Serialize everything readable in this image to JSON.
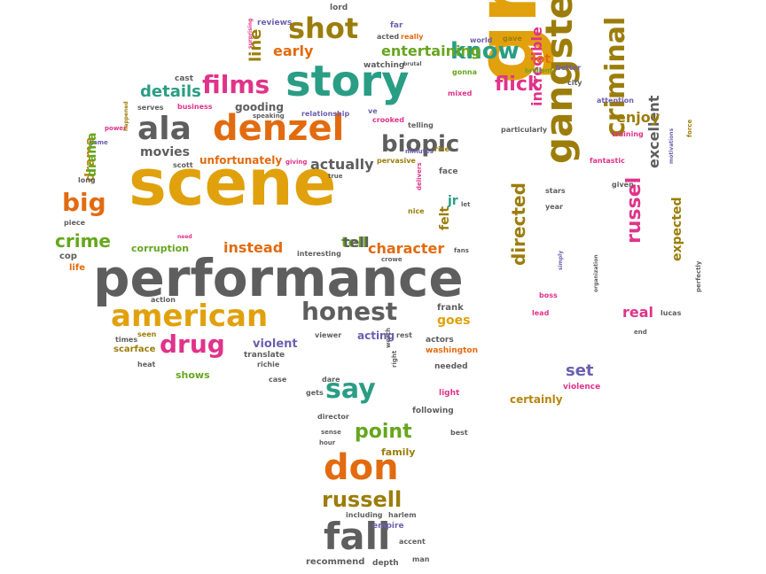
{
  "palette": {
    "gold": "#e0a10c",
    "gray": "#5e5e5e",
    "orange": "#e26b10",
    "teal": "#2a9d85",
    "pink": "#e0338a",
    "olive": "#b8860b",
    "green": "#66a61e",
    "purple": "#6b5fb0",
    "mustard": "#9c7d0a"
  },
  "words": [
    {
      "text": "scene",
      "color": "gold"
    },
    {
      "text": "great",
      "color": "gold"
    },
    {
      "text": "performance",
      "color": "gray"
    },
    {
      "text": "story",
      "color": "teal"
    },
    {
      "text": "denzel",
      "color": "orange"
    },
    {
      "text": "gangster",
      "color": "mustard"
    },
    {
      "text": "american",
      "color": "gold"
    },
    {
      "text": "don",
      "color": "orange"
    },
    {
      "text": "fall",
      "color": "gray"
    },
    {
      "text": "shot",
      "color": "mustard"
    },
    {
      "text": "criminal",
      "color": "mustard"
    },
    {
      "text": "honest",
      "color": "gray"
    },
    {
      "text": "ala",
      "color": "gray"
    },
    {
      "text": "films",
      "color": "pink"
    },
    {
      "text": "biopic",
      "color": "gray"
    },
    {
      "text": "big",
      "color": "orange"
    },
    {
      "text": "drug",
      "color": "pink"
    },
    {
      "text": "say",
      "color": "teal"
    },
    {
      "text": "know",
      "color": "teal"
    },
    {
      "text": "russell",
      "color": "mustard"
    },
    {
      "text": "flick",
      "color": "pink"
    },
    {
      "text": "russel",
      "color": "pink"
    },
    {
      "text": "directed",
      "color": "mustard"
    },
    {
      "text": "point",
      "color": "green"
    },
    {
      "text": "crime",
      "color": "green"
    },
    {
      "text": "incredible",
      "color": "pink"
    },
    {
      "text": "excellent",
      "color": "gray"
    },
    {
      "text": "details",
      "color": "teal"
    },
    {
      "text": "entertaining",
      "color": "green"
    },
    {
      "text": "line",
      "color": "mustard"
    },
    {
      "text": "early",
      "color": "orange"
    },
    {
      "text": "actually",
      "color": "gray"
    },
    {
      "text": "character",
      "color": "orange"
    },
    {
      "text": "instead",
      "color": "orange"
    },
    {
      "text": "tell",
      "color": "green"
    },
    {
      "text": "movies",
      "color": "gray"
    },
    {
      "text": "drama",
      "color": "olive"
    },
    {
      "text": "enjoy",
      "color": "mustard"
    },
    {
      "text": "real",
      "color": "pink"
    },
    {
      "text": "set",
      "color": "purple"
    },
    {
      "text": "expected",
      "color": "mustard"
    },
    {
      "text": "goes",
      "color": "gold"
    },
    {
      "text": "acting",
      "color": "purple"
    },
    {
      "text": "felt",
      "color": "mustard"
    },
    {
      "text": "jr",
      "color": "teal"
    },
    {
      "text": "lot",
      "color": "orange"
    },
    {
      "text": "unfortunately",
      "color": "orange"
    },
    {
      "text": "gooding",
      "color": "gray"
    },
    {
      "text": "violent",
      "color": "purple"
    },
    {
      "text": "corruption",
      "color": "green"
    },
    {
      "text": "shows",
      "color": "green"
    },
    {
      "text": "certainly",
      "color": "olive"
    },
    {
      "text": "frank",
      "color": "gray"
    },
    {
      "text": "family",
      "color": "mustard"
    },
    {
      "text": "reviews",
      "color": "purple"
    },
    {
      "text": "lord",
      "color": "gray"
    },
    {
      "text": "far",
      "color": "purple"
    },
    {
      "text": "acted",
      "color": "gray"
    },
    {
      "text": "really",
      "color": "orange"
    },
    {
      "text": "world",
      "color": "purple"
    },
    {
      "text": "gave",
      "color": "mustard"
    },
    {
      "text": "watching",
      "color": "gray"
    },
    {
      "text": "gonna",
      "color": "green"
    },
    {
      "text": "brilliant",
      "color": "green"
    },
    {
      "text": "better",
      "color": "purple"
    },
    {
      "text": "city",
      "color": "gray"
    },
    {
      "text": "cast",
      "color": "gray"
    },
    {
      "text": "business",
      "color": "pink"
    },
    {
      "text": "serves",
      "color": "gray"
    },
    {
      "text": "speaking",
      "color": "gray"
    },
    {
      "text": "relationship",
      "color": "purple"
    },
    {
      "text": "ve",
      "color": "purple"
    },
    {
      "text": "crooked",
      "color": "pink"
    },
    {
      "text": "telling",
      "color": "gray"
    },
    {
      "text": "mixed",
      "color": "pink"
    },
    {
      "text": "attention",
      "color": "purple"
    },
    {
      "text": "particularly",
      "color": "gray"
    },
    {
      "text": "training",
      "color": "pink"
    },
    {
      "text": "power",
      "color": "pink"
    },
    {
      "text": "happened",
      "color": "mustard"
    },
    {
      "text": "game",
      "color": "purple"
    },
    {
      "text": "scott",
      "color": "gray"
    },
    {
      "text": "giving",
      "color": "pink"
    },
    {
      "text": "pervasive",
      "color": "mustard"
    },
    {
      "text": "minutes",
      "color": "purple"
    },
    {
      "text": "rise",
      "color": "mustard"
    },
    {
      "text": "face",
      "color": "gray"
    },
    {
      "text": "true",
      "color": "gray"
    },
    {
      "text": "nice",
      "color": "mustard"
    },
    {
      "text": "delivers",
      "color": "pink"
    },
    {
      "text": "let",
      "color": "gray"
    },
    {
      "text": "fantastic",
      "color": "pink"
    },
    {
      "text": "given",
      "color": "gray"
    },
    {
      "text": "force",
      "color": "mustard"
    },
    {
      "text": "motivations",
      "color": "purple"
    },
    {
      "text": "long",
      "color": "gray"
    },
    {
      "text": "piece",
      "color": "gray"
    },
    {
      "text": "need",
      "color": "pink"
    },
    {
      "text": "year",
      "color": "gray"
    },
    {
      "text": "stars",
      "color": "gray"
    },
    {
      "text": "interesting",
      "color": "gray"
    },
    {
      "text": "crowe",
      "color": "gray"
    },
    {
      "text": "fans",
      "color": "gray"
    },
    {
      "text": "cop",
      "color": "gray"
    },
    {
      "text": "life",
      "color": "orange"
    },
    {
      "text": "boss",
      "color": "pink"
    },
    {
      "text": "simply",
      "color": "purple"
    },
    {
      "text": "organization",
      "color": "gray"
    },
    {
      "text": "perfectly",
      "color": "gray"
    },
    {
      "text": "lead",
      "color": "pink"
    },
    {
      "text": "action",
      "color": "gray"
    },
    {
      "text": "lucas",
      "color": "gray"
    },
    {
      "text": "end",
      "color": "gray"
    },
    {
      "text": "times",
      "color": "gray"
    },
    {
      "text": "seen",
      "color": "mustard"
    },
    {
      "text": "scarface",
      "color": "mustard"
    },
    {
      "text": "viewer",
      "color": "gray"
    },
    {
      "text": "rest",
      "color": "gray"
    },
    {
      "text": "actors",
      "color": "gray"
    },
    {
      "text": "washington",
      "color": "orange"
    },
    {
      "text": "heat",
      "color": "gray"
    },
    {
      "text": "translate",
      "color": "gray"
    },
    {
      "text": "richie",
      "color": "gray"
    },
    {
      "text": "worth",
      "color": "gray"
    },
    {
      "text": "right",
      "color": "gray"
    },
    {
      "text": "needed",
      "color": "gray"
    },
    {
      "text": "case",
      "color": "gray"
    },
    {
      "text": "dare",
      "color": "gray"
    },
    {
      "text": "gets",
      "color": "gray"
    },
    {
      "text": "light",
      "color": "pink"
    },
    {
      "text": "violence",
      "color": "pink"
    },
    {
      "text": "director",
      "color": "gray"
    },
    {
      "text": "following",
      "color": "gray"
    },
    {
      "text": "sense",
      "color": "gray"
    },
    {
      "text": "hour",
      "color": "gray"
    },
    {
      "text": "best",
      "color": "gray"
    },
    {
      "text": "including",
      "color": "gray"
    },
    {
      "text": "harlem",
      "color": "gray"
    },
    {
      "text": "empire",
      "color": "purple"
    },
    {
      "text": "accent",
      "color": "gray"
    },
    {
      "text": "recommend",
      "color": "gray"
    },
    {
      "text": "depth",
      "color": "gray"
    },
    {
      "text": "man",
      "color": "gray"
    },
    {
      "text": "surprising",
      "color": "pink"
    },
    {
      "text": "brutal",
      "color": "gray"
    },
    {
      "text": "drama",
      "color": "green"
    },
    {
      "text": "tell",
      "color": "gray"
    }
  ]
}
